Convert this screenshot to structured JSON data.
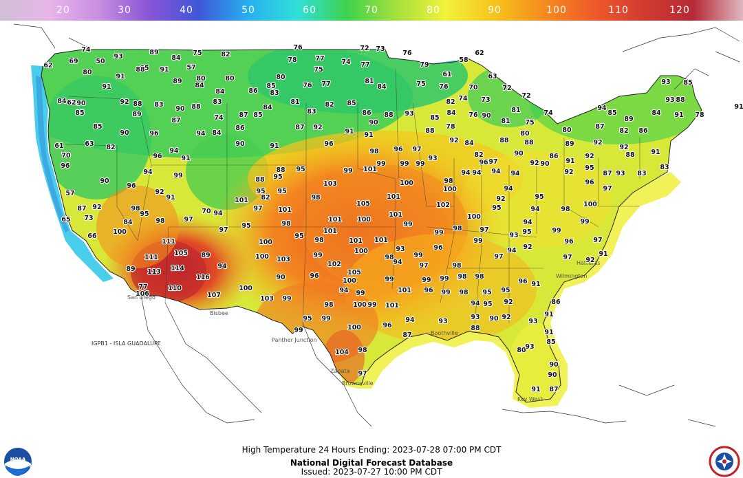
{
  "colorbar": {
    "labels": [
      "20",
      "30",
      "40",
      "50",
      "60",
      "70",
      "80",
      "90",
      "100",
      "110",
      "120"
    ],
    "stops": [
      "#cfc0d4",
      "#e8b4ea",
      "#c98fe0",
      "#8a55d6",
      "#3f57d8",
      "#28aef0",
      "#30e0d8",
      "#3fd24e",
      "#a4e03c",
      "#f2f23a",
      "#f7c21c",
      "#f58a1e",
      "#ee5a2a",
      "#d23a30",
      "#b52a36",
      "#e0b8c0"
    ]
  },
  "footer": {
    "line1": "High Temperature 24 Hours Ending: 2023-07-28 07:00 PM CDT",
    "line2": "National Digital Forecast Database",
    "line3": "Issued: 2023-07-27 10:00 PM CDT"
  },
  "isla_label": "IGPB1 - ISLA GUADALUPE",
  "logos": {
    "left": "NOAA",
    "right": "NATIONAL WEATHER SERVICE"
  },
  "points": [
    [
      "62",
      70,
      98
    ],
    [
      "74",
      125,
      75
    ],
    [
      "69",
      107,
      92
    ],
    [
      "80",
      127,
      108
    ],
    [
      "50",
      146,
      92
    ],
    [
      "93",
      172,
      85
    ],
    [
      "89",
      224,
      79
    ],
    [
      "84",
      256,
      87
    ],
    [
      "75",
      287,
      80
    ],
    [
      "82",
      328,
      82
    ],
    [
      "91",
      239,
      104
    ],
    [
      "57",
      278,
      101
    ],
    [
      "85",
      210,
      102
    ],
    [
      "88",
      204,
      104
    ],
    [
      "91",
      175,
      114
    ],
    [
      "91",
      155,
      129
    ],
    [
      "89",
      258,
      121
    ],
    [
      "80",
      292,
      117
    ],
    [
      "80",
      334,
      117
    ],
    [
      "86",
      368,
      135
    ],
    [
      "84",
      290,
      127
    ],
    [
      "84",
      320,
      136
    ],
    [
      "83",
      399,
      138
    ],
    [
      "81",
      429,
      151
    ],
    [
      "85",
      394,
      128
    ],
    [
      "80",
      408,
      115
    ],
    [
      "76",
      433,
      72
    ],
    [
      "77",
      465,
      88
    ],
    [
      "75",
      463,
      104
    ],
    [
      "78",
      425,
      90
    ],
    [
      "72",
      530,
      73
    ],
    [
      "73",
      553,
      74
    ],
    [
      "74",
      503,
      93
    ],
    [
      "77",
      531,
      97
    ],
    [
      "76",
      592,
      80
    ],
    [
      "79",
      617,
      97
    ],
    [
      "58",
      674,
      90
    ],
    [
      "62",
      697,
      80
    ],
    [
      "81",
      537,
      121
    ],
    [
      "84",
      555,
      129
    ],
    [
      "75",
      612,
      125
    ],
    [
      "76",
      645,
      129
    ],
    [
      "61",
      650,
      111
    ],
    [
      "70",
      688,
      130
    ],
    [
      "63",
      716,
      114
    ],
    [
      "72",
      737,
      131
    ],
    [
      "72",
      765,
      142
    ],
    [
      "62",
      104,
      152
    ],
    [
      "90",
      118,
      153
    ],
    [
      "92",
      181,
      151
    ],
    [
      "88",
      200,
      154
    ],
    [
      "83",
      231,
      155
    ],
    [
      "87",
      256,
      178
    ],
    [
      "90",
      262,
      161
    ],
    [
      "88",
      285,
      158
    ],
    [
      "74",
      318,
      174
    ],
    [
      "83",
      316,
      151
    ],
    [
      "87",
      354,
      170
    ],
    [
      "86",
      349,
      189
    ],
    [
      "85",
      375,
      170
    ],
    [
      "84",
      389,
      159
    ],
    [
      "83",
      453,
      165
    ],
    [
      "85",
      511,
      153
    ],
    [
      "82",
      479,
      155
    ],
    [
      "86",
      533,
      167
    ],
    [
      "76",
      447,
      127
    ],
    [
      "77",
      474,
      125
    ],
    [
      "92",
      462,
      188
    ],
    [
      "87",
      436,
      188
    ],
    [
      "91",
      508,
      194
    ],
    [
      "90",
      543,
      181
    ],
    [
      "88",
      565,
      170
    ],
    [
      "93",
      595,
      168
    ],
    [
      "88",
      625,
      193
    ],
    [
      "84",
      656,
      167
    ],
    [
      "82",
      655,
      151
    ],
    [
      "85",
      632,
      174
    ],
    [
      "78",
      655,
      187
    ],
    [
      "76",
      688,
      170
    ],
    [
      "90",
      707,
      171
    ],
    [
      "74",
      673,
      146
    ],
    [
      "73",
      706,
      148
    ],
    [
      "81",
      750,
      163
    ],
    [
      "81",
      735,
      179
    ],
    [
      "88",
      769,
      210
    ],
    [
      "74",
      797,
      167
    ],
    [
      "80",
      824,
      192
    ],
    [
      "75",
      770,
      181
    ],
    [
      "80",
      763,
      197
    ],
    [
      "84",
      90,
      150
    ],
    [
      "85",
      116,
      167
    ],
    [
      "85",
      142,
      187
    ],
    [
      "63",
      130,
      212
    ],
    [
      "61",
      86,
      215
    ],
    [
      "70",
      96,
      229
    ],
    [
      "90",
      181,
      196
    ],
    [
      "82",
      161,
      217
    ],
    [
      "89",
      199,
      169
    ],
    [
      "96",
      224,
      197
    ],
    [
      "94",
      253,
      222
    ],
    [
      "94",
      292,
      197
    ],
    [
      "84",
      315,
      196
    ],
    [
      "90",
      349,
      212
    ],
    [
      "91",
      399,
      215
    ],
    [
      "96",
      478,
      212
    ],
    [
      "91",
      536,
      199
    ],
    [
      "96",
      579,
      220
    ],
    [
      "97",
      606,
      220
    ],
    [
      "92",
      660,
      207
    ],
    [
      "93",
      629,
      233
    ],
    [
      "84",
      682,
      211
    ],
    [
      "82",
      696,
      228
    ],
    [
      "88",
      733,
      207
    ],
    [
      "90",
      754,
      226
    ],
    [
      "92",
      777,
      240
    ],
    [
      "86",
      805,
      230
    ],
    [
      "89",
      828,
      212
    ],
    [
      "92",
      869,
      210
    ],
    [
      "92",
      907,
      217
    ],
    [
      "91",
      829,
      237
    ],
    [
      "90",
      792,
      241
    ],
    [
      "86",
      935,
      193
    ],
    [
      "94",
      875,
      160
    ],
    [
      "89",
      914,
      176
    ],
    [
      "87",
      872,
      187
    ],
    [
      "82",
      907,
      193
    ],
    [
      "85",
      890,
      167
    ],
    [
      "84",
      954,
      167
    ],
    [
      "78",
      1017,
      170
    ],
    [
      "91",
      987,
      170
    ],
    [
      "88",
      989,
      148
    ],
    [
      "93",
      974,
      148
    ],
    [
      "85",
      1000,
      123
    ],
    [
      "93",
      968,
      122
    ],
    [
      "83",
      966,
      246
    ],
    [
      "91",
      953,
      224
    ],
    [
      "88",
      916,
      228
    ],
    [
      "93",
      902,
      255
    ],
    [
      "83",
      933,
      255
    ],
    [
      "87",
      883,
      255
    ],
    [
      "95",
      857,
      247
    ],
    [
      "92",
      857,
      230
    ],
    [
      "96",
      857,
      268
    ],
    [
      "97",
      883,
      277
    ],
    [
      "92",
      827,
      253
    ],
    [
      "94",
      749,
      255
    ],
    [
      "94",
      721,
      252
    ],
    [
      "97",
      717,
      238
    ],
    [
      "96",
      703,
      239
    ],
    [
      "94",
      693,
      254
    ],
    [
      "98",
      652,
      266
    ],
    [
      "94",
      677,
      254
    ],
    [
      "99",
      588,
      241
    ],
    [
      "100",
      591,
      269
    ],
    [
      "99",
      611,
      241
    ],
    [
      "99",
      554,
      241
    ],
    [
      "98",
      544,
      223
    ],
    [
      "101",
      538,
      249
    ],
    [
      "99",
      506,
      251
    ],
    [
      "103",
      480,
      270
    ],
    [
      "98",
      459,
      290
    ],
    [
      "95",
      437,
      249
    ],
    [
      "88",
      408,
      250
    ],
    [
      "95",
      404,
      260
    ],
    [
      "88",
      378,
      264
    ],
    [
      "82",
      386,
      290
    ],
    [
      "95",
      410,
      281
    ],
    [
      "91",
      270,
      233
    ],
    [
      "96",
      229,
      230
    ],
    [
      "94",
      215,
      253
    ],
    [
      "99",
      259,
      258
    ],
    [
      "92",
      232,
      282
    ],
    [
      "91",
      248,
      290
    ],
    [
      "96",
      191,
      273
    ],
    [
      "90",
      152,
      266
    ],
    [
      "98",
      197,
      306
    ],
    [
      "96",
      95,
      244
    ],
    [
      "57",
      102,
      284
    ],
    [
      "87",
      119,
      306
    ],
    [
      "92",
      141,
      304
    ],
    [
      "73",
      129,
      320
    ],
    [
      "65",
      96,
      322
    ],
    [
      "66",
      134,
      346
    ],
    [
      "84",
      186,
      326
    ],
    [
      "95",
      210,
      314
    ],
    [
      "98",
      233,
      324
    ],
    [
      "97",
      274,
      322
    ],
    [
      "70",
      300,
      310
    ],
    [
      "94",
      317,
      313
    ],
    [
      "101",
      351,
      294
    ],
    [
      "97",
      375,
      306
    ],
    [
      "95",
      358,
      331
    ],
    [
      "98",
      416,
      328
    ],
    [
      "101",
      414,
      308
    ],
    [
      "95",
      379,
      281
    ],
    [
      "97",
      325,
      337
    ],
    [
      "100",
      174,
      340
    ],
    [
      "105",
      263,
      371
    ],
    [
      "111",
      245,
      354
    ],
    [
      "111",
      220,
      377
    ],
    [
      "89",
      299,
      374
    ],
    [
      "94",
      323,
      390
    ],
    [
      "100",
      381,
      376
    ],
    [
      "103",
      412,
      380
    ],
    [
      "98",
      416,
      328
    ],
    [
      "101",
      487,
      322
    ],
    [
      "100",
      529,
      322
    ],
    [
      "105",
      528,
      299
    ],
    [
      "101",
      572,
      289
    ],
    [
      "101",
      575,
      315
    ],
    [
      "99",
      593,
      329
    ],
    [
      "102",
      644,
      301
    ],
    [
      "100",
      654,
      278
    ],
    [
      "98",
      665,
      335
    ],
    [
      "99",
      638,
      341
    ],
    [
      "100",
      689,
      318
    ],
    [
      "97",
      704,
      337
    ],
    [
      "93",
      747,
      345
    ],
    [
      "94",
      767,
      326
    ],
    [
      "95",
      784,
      289
    ],
    [
      "94",
      739,
      277
    ],
    [
      "92",
      728,
      292
    ],
    [
      "95",
      722,
      305
    ],
    [
      "94",
      778,
      307
    ],
    [
      "95",
      766,
      340
    ],
    [
      "92",
      767,
      362
    ],
    [
      "99",
      809,
      338
    ],
    [
      "98",
      822,
      307
    ],
    [
      "100",
      858,
      300
    ],
    [
      "99",
      850,
      325
    ],
    [
      "97",
      869,
      352
    ],
    [
      "91",
      877,
      372
    ],
    [
      "92",
      858,
      381
    ],
    [
      "96",
      827,
      354
    ],
    [
      "97",
      825,
      377
    ],
    [
      "99",
      695,
      353
    ],
    [
      "97",
      725,
      376
    ],
    [
      "94",
      744,
      367
    ],
    [
      "96",
      637,
      363
    ],
    [
      "98",
      664,
      389
    ],
    [
      "97",
      616,
      389
    ],
    [
      "99",
      608,
      374
    ],
    [
      "94",
      578,
      384
    ],
    [
      "100",
      525,
      368
    ],
    [
      "102",
      486,
      387
    ],
    [
      "105",
      515,
      399
    ],
    [
      "101",
      554,
      352
    ],
    [
      "101",
      517,
      353
    ],
    [
      "99",
      462,
      374
    ],
    [
      "95",
      435,
      346
    ],
    [
      "98",
      464,
      352
    ],
    [
      "101",
      480,
      339
    ],
    [
      "98",
      566,
      377
    ],
    [
      "93",
      582,
      365
    ],
    [
      "99",
      646,
      408
    ],
    [
      "98",
      697,
      405
    ],
    [
      "95",
      708,
      428
    ],
    [
      "95",
      735,
      425
    ],
    [
      "99",
      648,
      428
    ],
    [
      "97",
      671,
      406
    ],
    [
      "98",
      674,
      428
    ],
    [
      "94",
      691,
      444
    ],
    [
      "95",
      709,
      445
    ],
    [
      "92",
      739,
      442
    ],
    [
      "98",
      672,
      405
    ],
    [
      "99",
      620,
      410
    ],
    [
      "96",
      623,
      425
    ],
    [
      "101",
      588,
      425
    ],
    [
      "99",
      566,
      409
    ],
    [
      "100",
      508,
      411
    ],
    [
      "99",
      524,
      429
    ],
    [
      "98",
      478,
      446
    ],
    [
      "96",
      457,
      404
    ],
    [
      "94",
      500,
      425
    ],
    [
      "100",
      523,
      446
    ],
    [
      "99",
      541,
      446
    ],
    [
      "101",
      570,
      447
    ],
    [
      "103",
      388,
      437
    ],
    [
      "99",
      417,
      437
    ],
    [
      "90",
      408,
      406
    ],
    [
      "95",
      447,
      466
    ],
    [
      "99",
      474,
      466
    ],
    [
      "100",
      515,
      479
    ],
    [
      "96",
      563,
      476
    ],
    [
      "94",
      596,
      468
    ],
    [
      "93",
      644,
      470
    ],
    [
      "93",
      691,
      464
    ],
    [
      "90",
      718,
      466
    ],
    [
      "92",
      736,
      464
    ],
    [
      "91",
      798,
      460
    ],
    [
      "99",
      434,
      483
    ],
    [
      "98",
      527,
      512
    ],
    [
      "104",
      497,
      515
    ],
    [
      "97",
      527,
      546
    ],
    [
      "87",
      592,
      490
    ],
    [
      "88",
      691,
      480
    ],
    [
      "96",
      760,
      412
    ],
    [
      "91",
      779,
      416
    ],
    [
      "86",
      808,
      442
    ],
    [
      "91",
      798,
      486
    ],
    [
      "85",
      801,
      500
    ],
    [
      "90",
      805,
      533
    ],
    [
      "90",
      803,
      548
    ],
    [
      "91",
      779,
      569
    ],
    [
      "87",
      805,
      569
    ],
    [
      "93",
      775,
      470
    ],
    [
      "80",
      758,
      512
    ],
    [
      "93",
      770,
      507
    ],
    [
      "91",
      1074,
      158
    ],
    [
      "106",
      207,
      430
    ],
    [
      "113",
      224,
      398
    ],
    [
      "107",
      311,
      432
    ],
    [
      "114",
      258,
      393
    ],
    [
      "116",
      295,
      406
    ],
    [
      "100",
      357,
      422
    ],
    [
      "110",
      254,
      422
    ],
    [
      "89",
      190,
      394
    ],
    [
      "77",
      208,
      420
    ],
    [
      "100",
      386,
      355
    ]
  ]
}
